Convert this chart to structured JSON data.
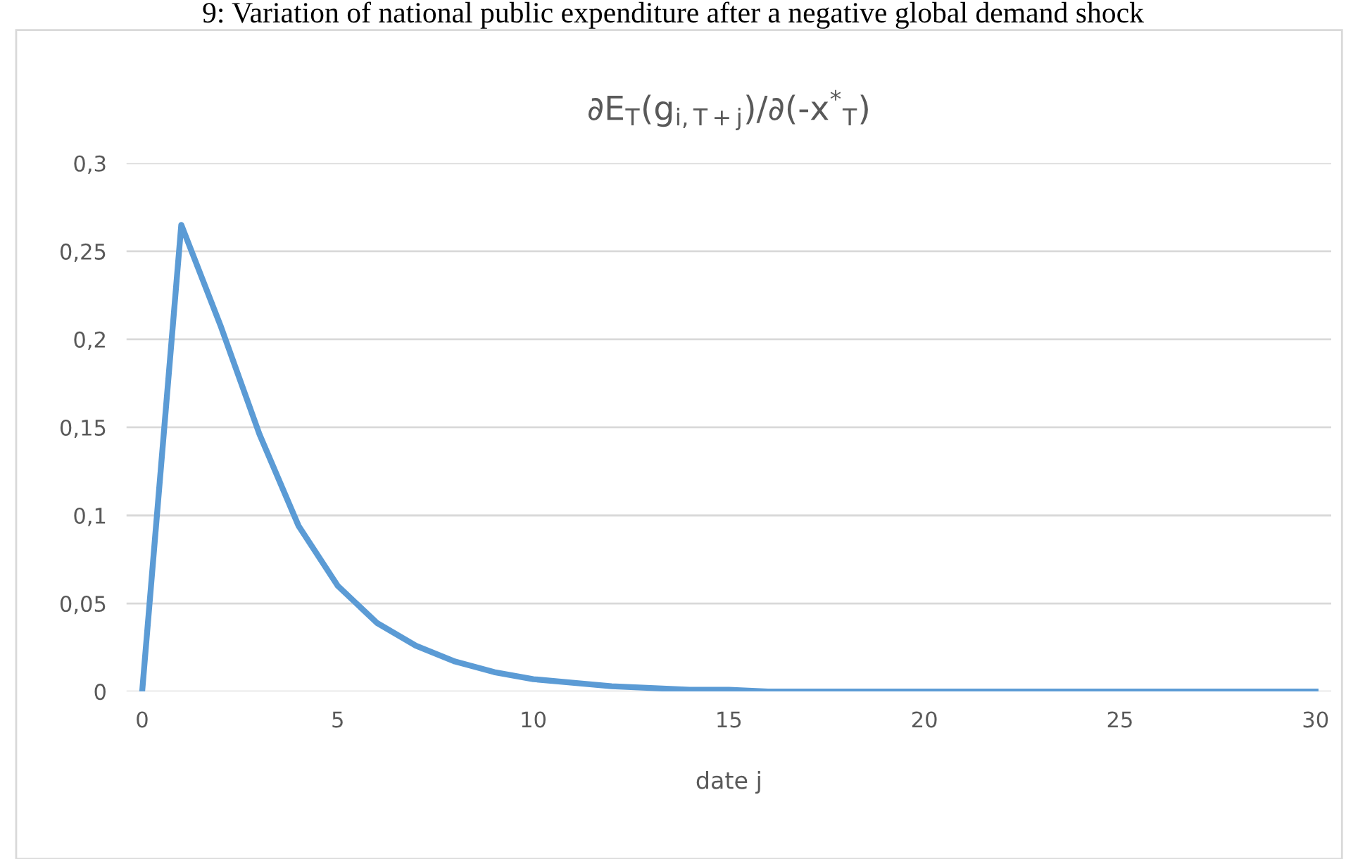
{
  "chart_data": {
    "type": "line",
    "title": "∂E$_{T}$(g$_{i,T+j}$)/∂(-x$^{*}$$_{T}$)",
    "xlabel": "date j",
    "annotations": [
      "9: Variation of national public expenditure after a negative global demand shock"
    ],
    "x": [
      0,
      1,
      2,
      3,
      4,
      5,
      6,
      7,
      8,
      9,
      10,
      11,
      12,
      13,
      14,
      15,
      16,
      17,
      18,
      19,
      20,
      21,
      22,
      23,
      24,
      25,
      26,
      27,
      28,
      29,
      30
    ],
    "series": [
      {
        "color": "#5b9bd5",
        "values": [
          0,
          0.265,
          0.208,
          0.146,
          0.094,
          0.06,
          0.039,
          0.026,
          0.017,
          0.011,
          0.007,
          0.005,
          0.003,
          0.002,
          0.001,
          0.001,
          0,
          0,
          0,
          0,
          0,
          0,
          0,
          0,
          0,
          0,
          0,
          0,
          0,
          0,
          0
        ]
      }
    ],
    "xlim": [
      -0.4,
      30.4
    ],
    "xticks": [
      0,
      5,
      10,
      15,
      20,
      25,
      30
    ],
    "ylim": [
      0,
      0.3
    ],
    "yticks": [
      {
        "value": 0,
        "label": "0"
      },
      {
        "value": 0.05,
        "label": "0,05"
      },
      {
        "value": 0.1,
        "label": "0,1"
      },
      {
        "value": 0.15,
        "label": "0,15"
      },
      {
        "value": 0.2,
        "label": "0,2"
      },
      {
        "value": 0.25,
        "label": "0,25"
      },
      {
        "value": 0.3,
        "label": "0,3"
      }
    ],
    "grid": "y",
    "marker": "none",
    "line_style": "solid"
  }
}
